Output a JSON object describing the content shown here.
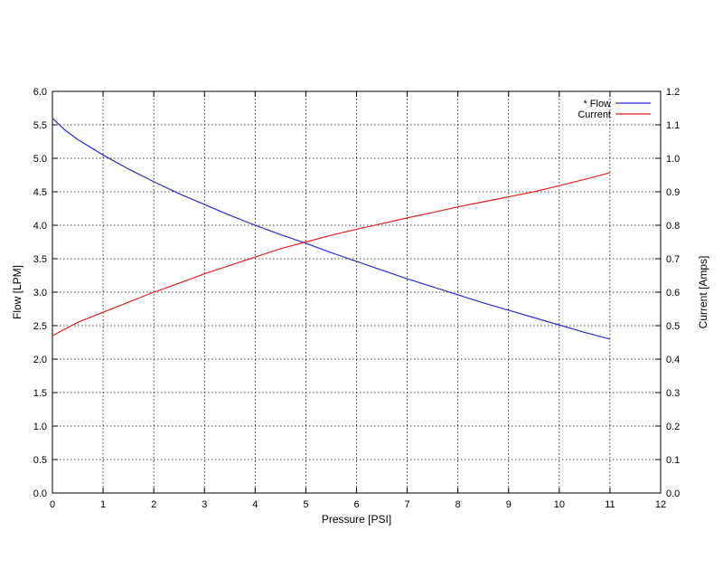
{
  "chart_data": {
    "type": "line",
    "title": "",
    "xlabel": "Pressure [PSI]",
    "ylabel": "Flow [LPM]",
    "y2label": "Current [Amps]",
    "xlim": [
      0,
      12
    ],
    "ylim": [
      0,
      6
    ],
    "y2lim": [
      0,
      1.2
    ],
    "grid": true,
    "legend_position": "top-right",
    "x_ticks": [
      "0",
      "1",
      "2",
      "3",
      "4",
      "5",
      "6",
      "7",
      "8",
      "9",
      "10",
      "11",
      "12"
    ],
    "y_ticks": [
      "0.0",
      "0.5",
      "1.0",
      "1.5",
      "2.0",
      "2.5",
      "3.0",
      "3.5",
      "4.0",
      "4.5",
      "5.0",
      "5.5",
      "6.0"
    ],
    "y2_ticks": [
      "0.0",
      "0.1",
      "0.2",
      "0.3",
      "0.4",
      "0.5",
      "0.6",
      "0.7",
      "0.8",
      "0.9",
      "1.0",
      "1.1",
      "1.2"
    ],
    "series": [
      {
        "name": "* Flow",
        "axis": "left",
        "color": "#2b2bcc",
        "x": [
          0,
          0.25,
          0.5,
          1,
          1.5,
          2,
          2.5,
          3,
          3.5,
          4,
          4.5,
          5,
          5.5,
          6,
          6.5,
          7,
          7.5,
          8,
          8.5,
          9,
          9.5,
          10,
          10.5,
          11
        ],
        "y": [
          5.6,
          5.42,
          5.28,
          5.05,
          4.84,
          4.65,
          4.47,
          4.31,
          4.15,
          4.0,
          3.86,
          3.73,
          3.59,
          3.46,
          3.33,
          3.2,
          3.08,
          2.96,
          2.84,
          2.73,
          2.62,
          2.51,
          2.4,
          2.3
        ]
      },
      {
        "name": "Current",
        "axis": "right",
        "color": "#e02020",
        "x": [
          0,
          0.5,
          1,
          1.5,
          2,
          2.5,
          3,
          3.5,
          4,
          4.5,
          5,
          5.5,
          6,
          6.5,
          7,
          7.5,
          8,
          8.5,
          9,
          9.5,
          10,
          10.5,
          11
        ],
        "y": [
          0.47,
          0.51,
          0.54,
          0.57,
          0.6,
          0.627,
          0.655,
          0.68,
          0.705,
          0.73,
          0.75,
          0.77,
          0.788,
          0.805,
          0.822,
          0.838,
          0.855,
          0.87,
          0.885,
          0.9,
          0.918,
          0.937,
          0.957
        ]
      }
    ]
  }
}
